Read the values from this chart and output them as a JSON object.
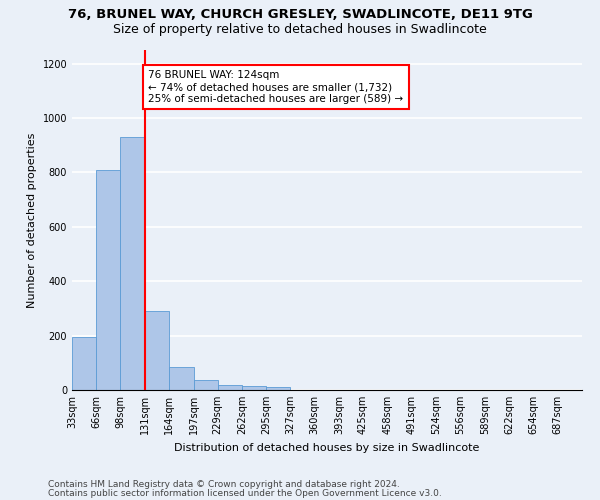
{
  "title1": "76, BRUNEL WAY, CHURCH GRESLEY, SWADLINCOTE, DE11 9TG",
  "title2": "Size of property relative to detached houses in Swadlincote",
  "xlabel": "Distribution of detached houses by size in Swadlincote",
  "ylabel": "Number of detached properties",
  "bin_labels": [
    "33sqm",
    "66sqm",
    "98sqm",
    "131sqm",
    "164sqm",
    "197sqm",
    "229sqm",
    "262sqm",
    "295sqm",
    "327sqm",
    "360sqm",
    "393sqm",
    "425sqm",
    "458sqm",
    "491sqm",
    "524sqm",
    "556sqm",
    "589sqm",
    "622sqm",
    "654sqm",
    "687sqm"
  ],
  "bin_edges": [
    33,
    66,
    98,
    131,
    164,
    197,
    229,
    262,
    295,
    327,
    360,
    393,
    425,
    458,
    491,
    524,
    556,
    589,
    622,
    654,
    687,
    720
  ],
  "bar_values": [
    195,
    810,
    930,
    290,
    85,
    35,
    18,
    15,
    12,
    0,
    0,
    0,
    0,
    0,
    0,
    0,
    0,
    0,
    0,
    0,
    0
  ],
  "bar_color": "#aec6e8",
  "bar_edgecolor": "#5b9bd5",
  "vline_x": 131,
  "annotation_text": "76 BRUNEL WAY: 124sqm\n← 74% of detached houses are smaller (1,732)\n25% of semi-detached houses are larger (589) →",
  "annotation_box_color": "white",
  "annotation_box_edgecolor": "red",
  "vline_color": "red",
  "ylim": [
    0,
    1250
  ],
  "yticks": [
    0,
    200,
    400,
    600,
    800,
    1000,
    1200
  ],
  "footer1": "Contains HM Land Registry data © Crown copyright and database right 2024.",
  "footer2": "Contains public sector information licensed under the Open Government Licence v3.0.",
  "background_color": "#eaf0f8",
  "plot_background": "#eaf0f8",
  "grid_color": "white",
  "title1_fontsize": 9.5,
  "title2_fontsize": 9,
  "axis_label_fontsize": 8,
  "tick_fontsize": 7,
  "annotation_fontsize": 7.5,
  "footer_fontsize": 6.5
}
